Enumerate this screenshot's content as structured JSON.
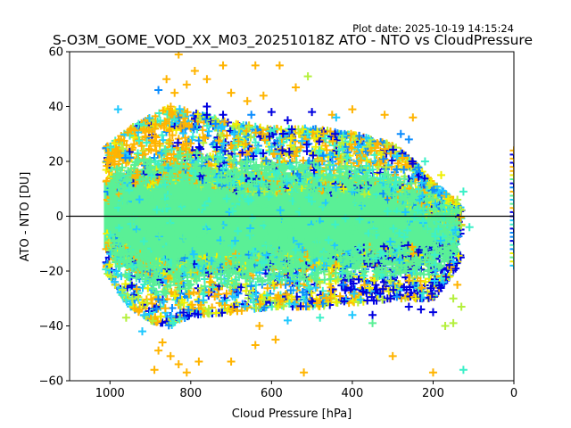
{
  "chart_data": {
    "type": "scatter",
    "title": "S-O3M_GOME_VOD_XX_M03_20251018Z ATO - NTO vs CloudPressure",
    "subtitle": "Plot date: 2025-10-19 14:15:24",
    "xlabel": "Cloud Pressure [hPa]",
    "ylabel": "ATO - NTO [DU]",
    "xlim": [
      1100,
      0
    ],
    "ylim": [
      -60,
      60
    ],
    "x_inverted": true,
    "xticks": [
      1000,
      800,
      600,
      400,
      200,
      0
    ],
    "xtick_labels": [
      "1000",
      "800",
      "600",
      "400",
      "200",
      "0"
    ],
    "yticks": [
      -60,
      -40,
      -20,
      0,
      20,
      40,
      60
    ],
    "ytick_labels": [
      "−60",
      "−40",
      "−20",
      "0",
      "20",
      "40",
      "60"
    ],
    "reference_line": {
      "y": 0,
      "color": "#000000"
    },
    "grid": false,
    "marker": "+",
    "colormap": [
      "#0000e0",
      "#0a8cff",
      "#1ec8ff",
      "#3cf0c8",
      "#5af096",
      "#b4f03c",
      "#f0f000",
      "#ffb400"
    ],
    "dense_core": {
      "color": "#5af096",
      "x_range": [
        1000,
        130
      ],
      "y_range_at_1000": [
        -22,
        18
      ],
      "y_range_at_150": [
        -15,
        8
      ]
    },
    "envelope": {
      "x": [
        1010,
        950,
        900,
        850,
        800,
        700,
        600,
        500,
        400,
        300,
        250,
        200,
        150,
        130
      ],
      "upper": [
        25,
        32,
        36,
        40,
        38,
        34,
        32,
        32,
        30,
        26,
        20,
        12,
        6,
        3
      ],
      "lower": [
        -20,
        -33,
        -38,
        -40,
        -36,
        -35,
        -33,
        -33,
        -32,
        -30,
        -30,
        -30,
        -20,
        -17
      ]
    },
    "outliers": [
      {
        "x": 830,
        "y": 59,
        "c": "#ffb400"
      },
      {
        "x": 790,
        "y": 53,
        "c": "#ffb400"
      },
      {
        "x": 720,
        "y": 55,
        "c": "#ffb400"
      },
      {
        "x": 640,
        "y": 55,
        "c": "#ffb400"
      },
      {
        "x": 580,
        "y": 55,
        "c": "#ffb400"
      },
      {
        "x": 510,
        "y": 51,
        "c": "#b4f03c"
      },
      {
        "x": 860,
        "y": 50,
        "c": "#ffb400"
      },
      {
        "x": 880,
        "y": 46,
        "c": "#0a8cff"
      },
      {
        "x": 840,
        "y": 45,
        "c": "#ffb400"
      },
      {
        "x": 810,
        "y": 48,
        "c": "#ffb400"
      },
      {
        "x": 760,
        "y": 50,
        "c": "#ffb400"
      },
      {
        "x": 700,
        "y": 45,
        "c": "#ffb400"
      },
      {
        "x": 660,
        "y": 42,
        "c": "#ffb400"
      },
      {
        "x": 620,
        "y": 44,
        "c": "#ffb400"
      },
      {
        "x": 540,
        "y": 47,
        "c": "#ffb400"
      },
      {
        "x": 760,
        "y": 40,
        "c": "#0000e0"
      },
      {
        "x": 980,
        "y": 39,
        "c": "#1ec8ff"
      },
      {
        "x": 600,
        "y": 38,
        "c": "#0000e0"
      },
      {
        "x": 450,
        "y": 37,
        "c": "#ffb400"
      },
      {
        "x": 400,
        "y": 39,
        "c": "#ffb400"
      },
      {
        "x": 320,
        "y": 37,
        "c": "#ffb400"
      },
      {
        "x": 250,
        "y": 36,
        "c": "#ffb400"
      },
      {
        "x": 280,
        "y": 30,
        "c": "#0a8cff"
      },
      {
        "x": 260,
        "y": 28,
        "c": "#0a8cff"
      },
      {
        "x": 220,
        "y": 20,
        "c": "#3cf0c8"
      },
      {
        "x": 180,
        "y": 15,
        "c": "#f0f000"
      },
      {
        "x": 125,
        "y": 9,
        "c": "#3cf0c8"
      },
      {
        "x": 140,
        "y": 6,
        "c": "#b4f03c"
      },
      {
        "x": 110,
        "y": -4,
        "c": "#3cf0c8"
      },
      {
        "x": 960,
        "y": -37,
        "c": "#b4f03c"
      },
      {
        "x": 920,
        "y": -42,
        "c": "#1ec8ff"
      },
      {
        "x": 870,
        "y": -46,
        "c": "#ffb400"
      },
      {
        "x": 880,
        "y": -49,
        "c": "#ffb400"
      },
      {
        "x": 850,
        "y": -51,
        "c": "#ffb400"
      },
      {
        "x": 830,
        "y": -54,
        "c": "#ffb400"
      },
      {
        "x": 890,
        "y": -56,
        "c": "#ffb400"
      },
      {
        "x": 810,
        "y": -57,
        "c": "#ffb400"
      },
      {
        "x": 780,
        "y": -53,
        "c": "#ffb400"
      },
      {
        "x": 700,
        "y": -53,
        "c": "#ffb400"
      },
      {
        "x": 640,
        "y": -47,
        "c": "#ffb400"
      },
      {
        "x": 590,
        "y": -45,
        "c": "#ffb400"
      },
      {
        "x": 520,
        "y": -57,
        "c": "#ffb400"
      },
      {
        "x": 630,
        "y": -40,
        "c": "#ffb400"
      },
      {
        "x": 560,
        "y": -38,
        "c": "#1ec8ff"
      },
      {
        "x": 480,
        "y": -37,
        "c": "#3cf0c8"
      },
      {
        "x": 400,
        "y": -36,
        "c": "#1ec8ff"
      },
      {
        "x": 350,
        "y": -39,
        "c": "#5af096"
      },
      {
        "x": 300,
        "y": -51,
        "c": "#ffb400"
      },
      {
        "x": 200,
        "y": -57,
        "c": "#ffb400"
      },
      {
        "x": 125,
        "y": -56,
        "c": "#3cf0c8"
      },
      {
        "x": 170,
        "y": -40,
        "c": "#b4f03c"
      },
      {
        "x": 150,
        "y": -39,
        "c": "#b4f03c"
      },
      {
        "x": 130,
        "y": -33,
        "c": "#b4f03c"
      },
      {
        "x": 200,
        "y": -35,
        "c": "#0000e0"
      },
      {
        "x": 230,
        "y": -34,
        "c": "#0000e0"
      },
      {
        "x": 260,
        "y": -33,
        "c": "#0000e0"
      },
      {
        "x": 150,
        "y": -30,
        "c": "#b4f03c"
      },
      {
        "x": 140,
        "y": -25,
        "c": "#ffb400"
      },
      {
        "x": 350,
        "y": -36,
        "c": "#0000e0"
      },
      {
        "x": 420,
        "y": -31,
        "c": "#0000e0"
      },
      {
        "x": 500,
        "y": -31,
        "c": "#0000e0"
      },
      {
        "x": 760,
        "y": 37,
        "c": "#0000e0"
      },
      {
        "x": 720,
        "y": 37,
        "c": "#0000e0"
      },
      {
        "x": 650,
        "y": 37,
        "c": "#0a8cff"
      },
      {
        "x": 560,
        "y": 35,
        "c": "#0000e0"
      },
      {
        "x": 500,
        "y": 38,
        "c": "#0000e0"
      },
      {
        "x": 440,
        "y": 36,
        "c": "#1ec8ff"
      }
    ],
    "right_edge_strip": {
      "x": 0,
      "y_range": [
        -18,
        25
      ]
    }
  }
}
